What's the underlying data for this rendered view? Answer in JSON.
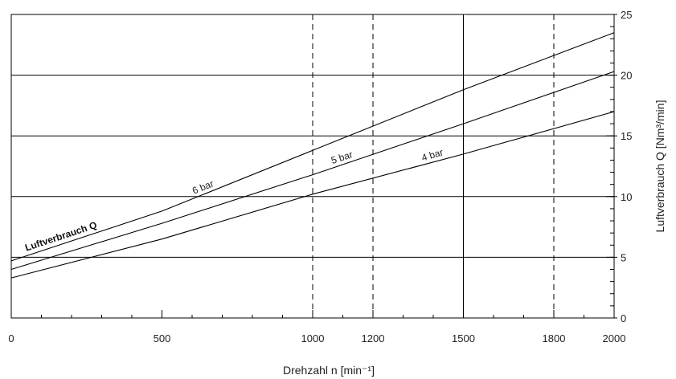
{
  "chart_data": {
    "type": "line",
    "title": "",
    "xlabel": "Drehzahl n  [min⁻¹]",
    "ylabel": "Luftverbrauch Q  [Nm³/min]",
    "xlim": [
      0,
      2000
    ],
    "ylim": [
      0,
      25
    ],
    "x_ticks": [
      0,
      500,
      1000,
      1200,
      1500,
      1800,
      2000
    ],
    "y_ticks": [
      0,
      5,
      10,
      15,
      20,
      25
    ],
    "y_axis_side": "right",
    "grid": {
      "horizontal_solid": [
        5,
        10,
        15,
        20
      ],
      "vertical_solid": [
        1500
      ],
      "vertical_dashed": [
        1000,
        1200,
        1800
      ]
    },
    "series": [
      {
        "name": "6 bar",
        "x": [
          0,
          500,
          1000,
          1500,
          2000
        ],
        "y": [
          4.7,
          8.8,
          13.8,
          18.8,
          23.5
        ]
      },
      {
        "name": "5 bar",
        "x": [
          0,
          500,
          1000,
          1500,
          2000
        ],
        "y": [
          4.0,
          7.8,
          11.8,
          16.0,
          20.3
        ]
      },
      {
        "name": "4 bar",
        "x": [
          0,
          500,
          1000,
          1500,
          2000
        ],
        "y": [
          3.3,
          6.5,
          10.2,
          13.5,
          17.0
        ]
      }
    ],
    "annotations": [
      "Luftverbrauch Q"
    ]
  }
}
